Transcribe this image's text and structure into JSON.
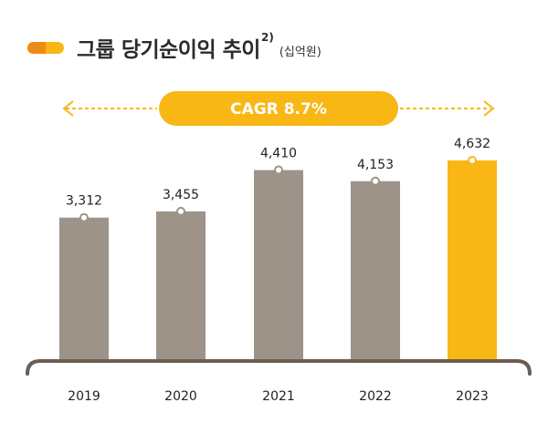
{
  "header": {
    "title": "그룹 당기순이익 추이",
    "sup": "2)",
    "unit": "(십억원)"
  },
  "cagr": {
    "label": "CAGR 8.7%"
  },
  "colors": {
    "bar": "#9e9388",
    "highlight": "#f9b715",
    "axis": "#6b5d52",
    "accent_orange": "#f08a16"
  },
  "chart_data": {
    "type": "bar",
    "title": "그룹 당기순이익 추이",
    "ylabel": "십억원",
    "xlabel": "",
    "categories": [
      "2019",
      "2020",
      "2021",
      "2022",
      "2023"
    ],
    "values": [
      3312,
      3455,
      4410,
      4153,
      4632
    ],
    "value_labels": [
      "3,312",
      "3,455",
      "4,410",
      "4,153",
      "4,632"
    ],
    "highlight_index": 4,
    "ylim": [
      0,
      5000
    ],
    "grid": false,
    "legend": "none"
  }
}
